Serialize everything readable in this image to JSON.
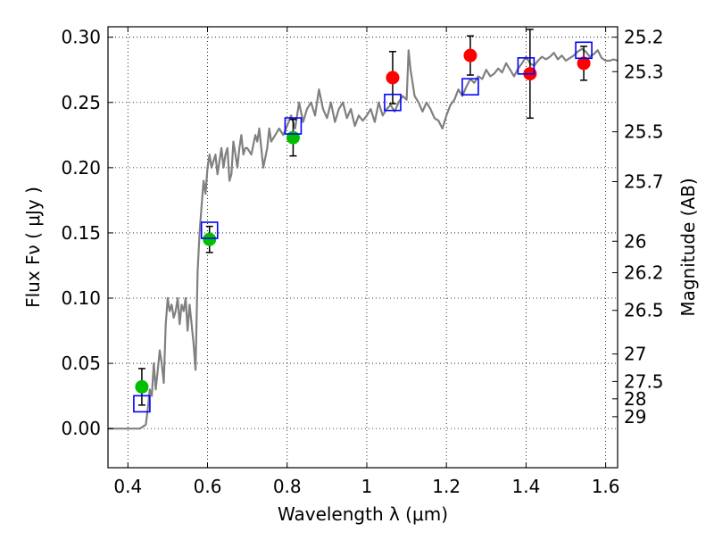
{
  "chart_data": {
    "type": "scatter",
    "xlabel": "Wavelength  λ (μm)",
    "ylabel": "Flux  Fν  ( μJy )",
    "y2label": "Magnitude (AB)",
    "xlim": [
      0.35,
      1.63
    ],
    "ylim": [
      -0.03,
      0.308
    ],
    "grid": true,
    "legend": "none",
    "xticks": [
      0.4,
      0.6,
      0.8,
      1.0,
      1.2,
      1.4,
      1.6
    ],
    "xtick_labels": [
      "0.4",
      "0.6",
      "0.8",
      "1",
      "1.2",
      "1.4",
      "1.6"
    ],
    "yticks": [
      0.0,
      0.05,
      0.1,
      0.15,
      0.2,
      0.25,
      0.3
    ],
    "ytick_labels": [
      "0.00",
      "0.05",
      "0.10",
      "0.15",
      "0.20",
      "0.25",
      "0.30"
    ],
    "y2ticks": [
      {
        "label": "25.2",
        "flux": 0.3
      },
      {
        "label": "25.3",
        "flux": 0.2736
      },
      {
        "label": "25.5",
        "flux": 0.2275
      },
      {
        "label": "25.7",
        "flux": 0.1893
      },
      {
        "label": "26",
        "flux": 0.1436
      },
      {
        "label": "26.2",
        "flux": 0.1195
      },
      {
        "label": "26.5",
        "flux": 0.0906
      },
      {
        "label": "27",
        "flux": 0.0572
      },
      {
        "label": "27.5",
        "flux": 0.0361
      },
      {
        "label": "28",
        "flux": 0.0228
      },
      {
        "label": "29",
        "flux": 0.0091
      }
    ],
    "series": [
      {
        "kind": "line",
        "color": "#808080",
        "x": [
          0.35,
          0.43,
          0.445,
          0.45,
          0.455,
          0.46,
          0.465,
          0.47,
          0.475,
          0.48,
          0.485,
          0.49,
          0.495,
          0.5,
          0.505,
          0.51,
          0.515,
          0.52,
          0.525,
          0.53,
          0.535,
          0.54,
          0.545,
          0.55,
          0.555,
          0.56,
          0.565,
          0.57,
          0.575,
          0.58,
          0.585,
          0.59,
          0.595,
          0.6,
          0.605,
          0.61,
          0.615,
          0.62,
          0.625,
          0.63,
          0.635,
          0.64,
          0.645,
          0.65,
          0.655,
          0.66,
          0.665,
          0.67,
          0.675,
          0.68,
          0.685,
          0.69,
          0.695,
          0.7,
          0.71,
          0.72,
          0.725,
          0.73,
          0.74,
          0.75,
          0.755,
          0.76,
          0.77,
          0.78,
          0.79,
          0.8,
          0.81,
          0.82,
          0.83,
          0.84,
          0.85,
          0.86,
          0.87,
          0.88,
          0.89,
          0.9,
          0.91,
          0.92,
          0.93,
          0.94,
          0.95,
          0.96,
          0.97,
          0.98,
          0.99,
          1.0,
          1.01,
          1.02,
          1.03,
          1.04,
          1.05,
          1.06,
          1.07,
          1.08,
          1.09,
          1.1,
          1.105,
          1.11,
          1.115,
          1.12,
          1.13,
          1.14,
          1.15,
          1.16,
          1.17,
          1.18,
          1.19,
          1.2,
          1.21,
          1.22,
          1.23,
          1.24,
          1.25,
          1.26,
          1.27,
          1.28,
          1.29,
          1.3,
          1.31,
          1.32,
          1.33,
          1.34,
          1.35,
          1.36,
          1.37,
          1.38,
          1.39,
          1.4,
          1.41,
          1.42,
          1.43,
          1.44,
          1.45,
          1.46,
          1.47,
          1.48,
          1.49,
          1.5,
          1.51,
          1.52,
          1.53,
          1.54,
          1.55,
          1.56,
          1.57,
          1.58,
          1.59,
          1.6,
          1.61,
          1.62,
          1.63
        ],
        "y": [
          0.0,
          0.0,
          0.003,
          0.015,
          0.03,
          0.025,
          0.05,
          0.03,
          0.045,
          0.06,
          0.05,
          0.035,
          0.08,
          0.1,
          0.09,
          0.095,
          0.085,
          0.09,
          0.1,
          0.08,
          0.095,
          0.09,
          0.1,
          0.075,
          0.095,
          0.08,
          0.065,
          0.045,
          0.12,
          0.15,
          0.17,
          0.19,
          0.18,
          0.2,
          0.21,
          0.2,
          0.205,
          0.21,
          0.195,
          0.205,
          0.215,
          0.2,
          0.21,
          0.215,
          0.19,
          0.195,
          0.22,
          0.21,
          0.2,
          0.215,
          0.225,
          0.21,
          0.215,
          0.215,
          0.21,
          0.225,
          0.22,
          0.23,
          0.2,
          0.215,
          0.23,
          0.22,
          0.225,
          0.23,
          0.225,
          0.232,
          0.24,
          0.23,
          0.25,
          0.235,
          0.245,
          0.25,
          0.24,
          0.26,
          0.245,
          0.238,
          0.25,
          0.235,
          0.245,
          0.25,
          0.238,
          0.245,
          0.232,
          0.24,
          0.236,
          0.24,
          0.245,
          0.235,
          0.25,
          0.24,
          0.245,
          0.248,
          0.243,
          0.25,
          0.255,
          0.252,
          0.29,
          0.275,
          0.265,
          0.255,
          0.25,
          0.243,
          0.25,
          0.245,
          0.238,
          0.236,
          0.23,
          0.24,
          0.248,
          0.252,
          0.26,
          0.255,
          0.262,
          0.268,
          0.265,
          0.27,
          0.268,
          0.275,
          0.27,
          0.272,
          0.276,
          0.273,
          0.28,
          0.275,
          0.27,
          0.276,
          0.28,
          0.285,
          0.28,
          0.278,
          0.282,
          0.285,
          0.283,
          0.285,
          0.288,
          0.283,
          0.286,
          0.282,
          0.284,
          0.286,
          0.289,
          0.291,
          0.289,
          0.285,
          0.287,
          0.29,
          0.284,
          0.282,
          0.282,
          0.283,
          0.282
        ]
      },
      {
        "kind": "markers",
        "marker": "circle",
        "color": "#00bf00",
        "x": [
          0.435,
          0.605,
          0.815
        ],
        "y": [
          0.032,
          0.145,
          0.223
        ],
        "yerr": [
          0.014,
          0.01,
          0.014
        ]
      },
      {
        "kind": "markers",
        "marker": "circle",
        "color": "#ff0000",
        "x": [
          1.065,
          1.26,
          1.41,
          1.545
        ],
        "y": [
          0.269,
          0.286,
          0.272,
          0.28
        ],
        "yerr": [
          0.02,
          0.015,
          0.034,
          0.013
        ]
      },
      {
        "kind": "markers",
        "marker": "open-square",
        "color": "#0000ff",
        "x": [
          0.435,
          0.605,
          0.815,
          1.065,
          1.26,
          1.4,
          1.545
        ],
        "y": [
          0.019,
          0.152,
          0.232,
          0.25,
          0.262,
          0.278,
          0.29
        ]
      }
    ]
  }
}
